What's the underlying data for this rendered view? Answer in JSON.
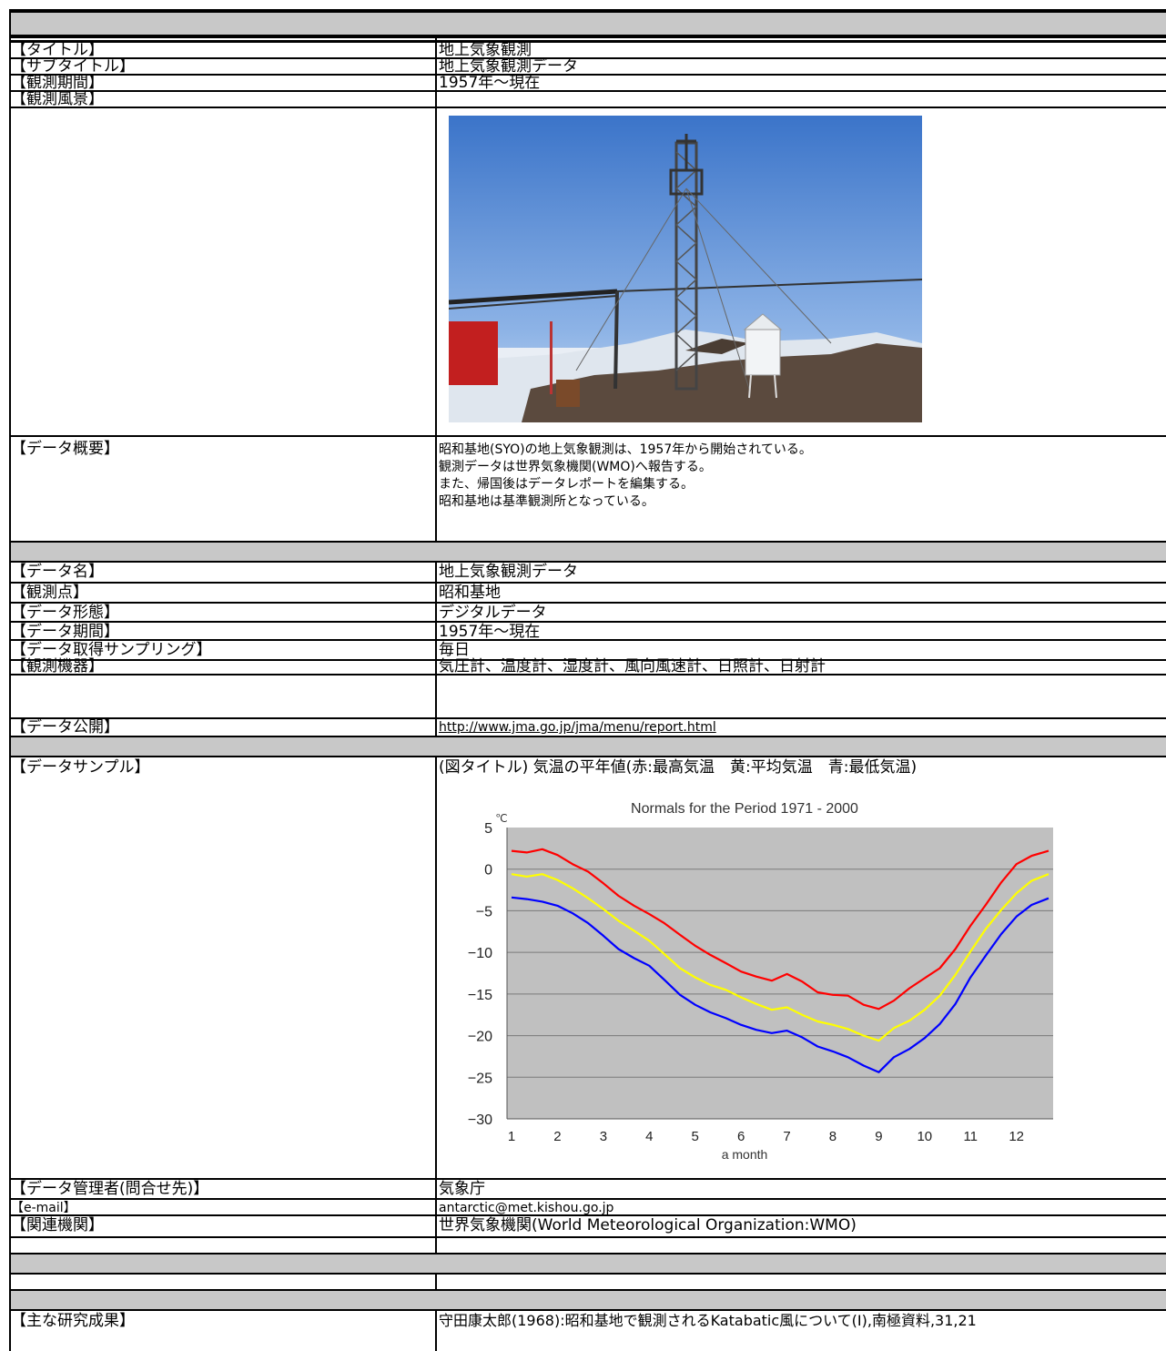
{
  "fields": {
    "title_label": "【タイトル】",
    "title_value": "地上気象観測",
    "subtitle_label": "【サブタイトル】",
    "subtitle_value": "地上気象観測データ",
    "period_label": "【観測期間】",
    "period_value": "1957年～現在",
    "scenery_label": "【観測風景】",
    "overview_label": "【データ概要】",
    "overview_lines": [
      "昭和基地(SYO)の地上気象観測は、1957年から開始されている。",
      "観測データは世界気象機関(WMO)へ報告する。",
      "また、帰国後はデータレポートを編集する。",
      "昭和基地は基準観測所となっている。"
    ],
    "data_name_label": "【データ名】",
    "data_name_value": "地上気象観測データ",
    "station_label": "【観測点】",
    "station_value": "昭和基地",
    "format_label": "【データ形態】",
    "format_value": "デジタルデータ",
    "data_period_label": "【データ期間】",
    "data_period_value": "1957年～現在",
    "sampling_label": "【データ取得サンプリング】",
    "sampling_value": "毎日",
    "instruments_label": "【観測機器】",
    "instruments_value": "気圧計、温度計、湿度計、風向風速計、日照計、日射計",
    "public_label": "【データ公開】",
    "public_url": "http://www.jma.go.jp/jma/menu/report.html",
    "sample_label": "【データサンプル】",
    "sample_caption": "(図タイトル) 気温の平年値(赤:最高気温　黄:平均気温　青:最低気温)",
    "manager_label": "【データ管理者(問合せ先)】",
    "manager_value": "気象庁",
    "email_label": "【e-mail】",
    "email_value": "antarctic@met.kishou.go.jp",
    "related_label": "【関連機関】",
    "related_value": "世界気象機関(World Meteorological Organization:WMO)",
    "results_label": "【主な研究成果】",
    "results_value": "守田康太郎(1968):昭和基地で観測されるKatabatic風について(Ⅰ),南極資料,31,21"
  },
  "colors": {
    "band": "#c8c8c8",
    "plot_bg": "#c0c0c0",
    "max_line": "#ff0000",
    "mean_line": "#ffff00",
    "min_line": "#0000ff"
  },
  "chart_data": {
    "type": "line",
    "title": "Normals for the Period 1971 - 2000",
    "xlabel": "a month",
    "ylabel": "℃",
    "x_ticks": [
      "1",
      "2",
      "3",
      "4",
      "5",
      "6",
      "7",
      "8",
      "9",
      "10",
      "11",
      "12"
    ],
    "y_ticks": [
      5,
      0,
      -5,
      -10,
      -15,
      -20,
      -25,
      -30
    ],
    "ylim": [
      -30,
      5
    ],
    "xlim": [
      0.9,
      12.8
    ],
    "grid": true,
    "legend": "none",
    "x": [
      1,
      1.33,
      1.67,
      2,
      2.33,
      2.67,
      3,
      3.33,
      3.67,
      4,
      4.33,
      4.67,
      5,
      5.33,
      5.67,
      6,
      6.33,
      6.67,
      7,
      7.33,
      7.67,
      8,
      8.33,
      8.67,
      9,
      9.33,
      9.67,
      10,
      10.33,
      10.67,
      11,
      11.33,
      11.67,
      12,
      12.33,
      12.7
    ],
    "series": [
      {
        "values": [
          2.2,
          2.0,
          2.4,
          1.7,
          0.6,
          -0.3,
          -1.7,
          -3.2,
          -4.4,
          -5.4,
          -6.5,
          -7.9,
          -9.2,
          -10.3,
          -11.3,
          -12.3,
          -12.9,
          -13.4,
          -12.6,
          -13.5,
          -14.8,
          -15.1,
          -15.2,
          -16.3,
          -16.8,
          -15.8,
          -14.3,
          -13.1,
          -11.9,
          -9.6,
          -6.8,
          -4.3,
          -1.6,
          0.6,
          1.6,
          2.2
        ]
      },
      {
        "values": [
          -0.6,
          -0.9,
          -0.6,
          -1.3,
          -2.3,
          -3.5,
          -4.8,
          -6.2,
          -7.4,
          -8.6,
          -10.2,
          -11.9,
          -13.0,
          -13.9,
          -14.5,
          -15.4,
          -16.2,
          -16.9,
          -16.6,
          -17.5,
          -18.3,
          -18.7,
          -19.2,
          -20.0,
          -20.6,
          -19.1,
          -18.2,
          -16.9,
          -15.2,
          -12.7,
          -9.9,
          -7.2,
          -4.9,
          -2.9,
          -1.4,
          -0.6
        ]
      },
      {
        "values": [
          -3.4,
          -3.6,
          -3.9,
          -4.4,
          -5.3,
          -6.5,
          -8.0,
          -9.6,
          -10.7,
          -11.6,
          -13.3,
          -15.1,
          -16.3,
          -17.2,
          -17.9,
          -18.7,
          -19.3,
          -19.7,
          -19.4,
          -20.2,
          -21.3,
          -21.9,
          -22.6,
          -23.6,
          -24.4,
          -22.6,
          -21.6,
          -20.3,
          -18.6,
          -16.2,
          -13.0,
          -10.4,
          -7.8,
          -5.7,
          -4.3,
          -3.5
        ]
      }
    ]
  }
}
